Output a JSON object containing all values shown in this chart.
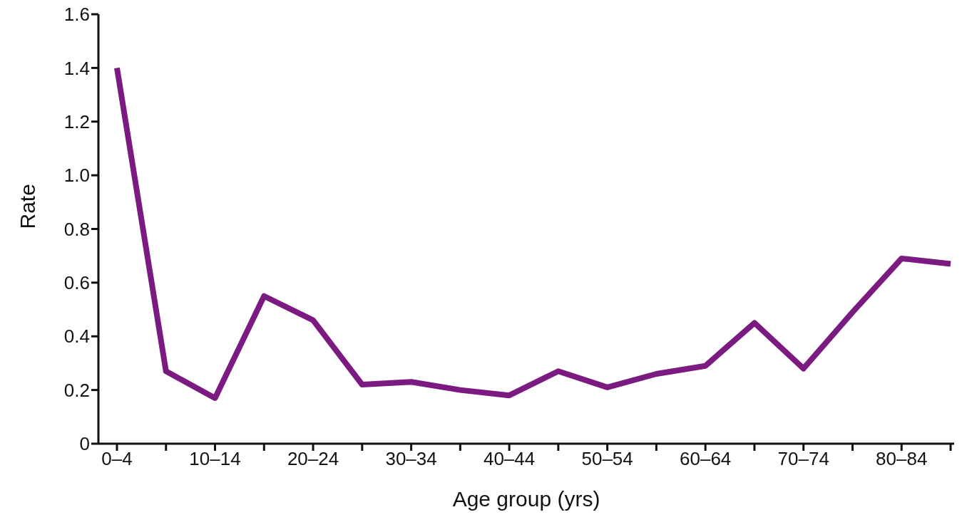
{
  "chart_data": {
    "type": "line",
    "xlabel": "Age group (yrs)",
    "ylabel": "Rate",
    "categories": [
      "0–4",
      null,
      "10–14",
      null,
      "20–24",
      null,
      "30–34",
      null,
      "40–44",
      null,
      "50–54",
      null,
      "60–64",
      null,
      "70–74",
      null,
      "80–84",
      null
    ],
    "series": [
      {
        "color": "#7b1a80",
        "values": [
          1.4,
          0.27,
          0.17,
          0.55,
          0.46,
          0.22,
          0.23,
          0.2,
          0.18,
          0.27,
          0.21,
          0.26,
          0.29,
          0.45,
          0.28,
          0.49,
          0.69,
          0.67
        ]
      }
    ],
    "ylim": [
      0,
      1.6
    ],
    "yticks": [
      0,
      {
        "value": 0.2,
        "label": "0.2"
      },
      {
        "value": 0.4,
        "label": "0.4"
      },
      {
        "value": 0.6,
        "label": "0.6"
      },
      {
        "value": 0.8,
        "label": "0.8"
      },
      {
        "value": 1,
        "label": "1.0"
      },
      {
        "value": 1.2,
        "label": "1.2"
      },
      {
        "value": 1.4,
        "label": "1.4"
      },
      {
        "value": 1.6,
        "label": "1.6"
      }
    ],
    "grid": false,
    "legend": false,
    "marker": "none",
    "line_style": "solid"
  }
}
